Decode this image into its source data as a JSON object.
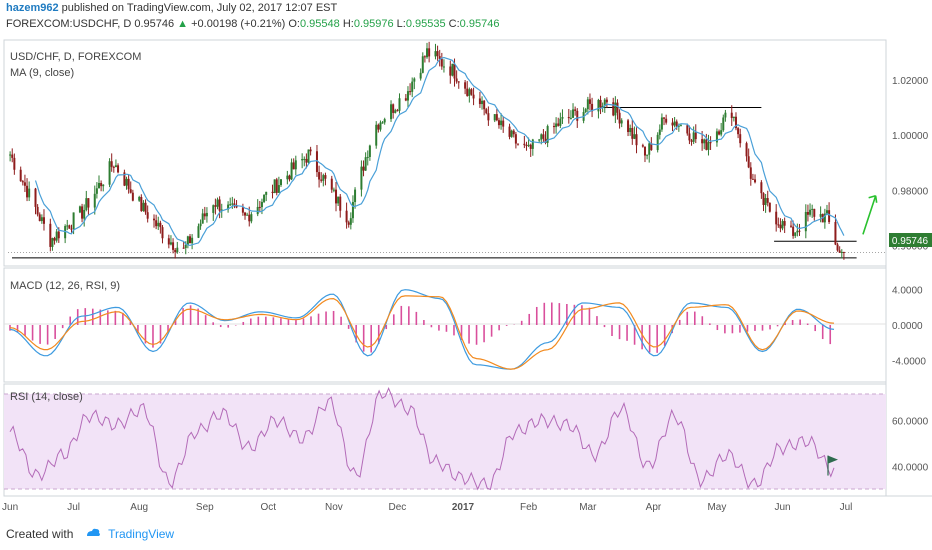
{
  "header": {
    "author": "hazem962",
    "published_text": "published on TradingView.com, July 02, 2017 12:07 EST",
    "symbol": "FOREXCOM:USDCHF, D",
    "price": "0.95746",
    "arrow": "▲",
    "change": "+0.00198 (+0.21%)",
    "o_label": "O:",
    "o_value": "0.95548",
    "h_label": "H:",
    "h_value": "0.95976",
    "l_label": "L:",
    "l_value": "0.95535",
    "c_label": "C:",
    "c_value": "0.95746"
  },
  "main_pane": {
    "title": "USD/CHF, D, FOREXCOM",
    "ma_label": "MA (9, close)",
    "price_badge": "0.95746"
  },
  "macd_pane": {
    "title": "MACD (12, 26, RSI, 9)"
  },
  "rsi_pane": {
    "title": "RSI (14, close)"
  },
  "footer": {
    "created_with": "Created with",
    "brand": "TradingView"
  },
  "colors": {
    "up_candle": "#2e7d32",
    "down_candle": "#8e1c1c",
    "ma": "#4aa0d8",
    "macd": "#3e9be0",
    "signal": "#f28a1f",
    "hist": "#d94f9c",
    "rsi_line": "#b36bb8",
    "rsi_band": "#f2e3f7",
    "arrow": "#29c12e"
  },
  "chart_data": [
    {
      "type": "candlestick",
      "title": "USD/CHF, D, FOREXCOM",
      "x_tick_labels": [
        "Jun",
        "Jul",
        "Aug",
        "Sep",
        "Oct",
        "Nov",
        "Dec",
        "2017",
        "Feb",
        "Mar",
        "Apr",
        "May",
        "Jun",
        "Jul"
      ],
      "y_tick_labels": [
        "1.02000",
        "1.00000",
        "0.98000",
        "0.96000"
      ],
      "ylim": [
        0.954,
        1.033
      ],
      "close_path": [
        [
          "2016-06-01",
          0.993
        ],
        [
          "2016-06-20",
          0.962
        ],
        [
          "2016-07-05",
          0.972
        ],
        [
          "2016-07-20",
          0.99
        ],
        [
          "2016-08-01",
          0.975
        ],
        [
          "2016-08-15",
          0.962
        ],
        [
          "2016-08-22",
          0.958
        ],
        [
          "2016-09-05",
          0.976
        ],
        [
          "2016-09-20",
          0.97
        ],
        [
          "2016-10-05",
          0.982
        ],
        [
          "2016-10-20",
          0.993
        ],
        [
          "2016-11-01",
          0.978
        ],
        [
          "2016-11-08",
          0.97
        ],
        [
          "2016-11-20",
          1.003
        ],
        [
          "2016-12-05",
          1.015
        ],
        [
          "2016-12-15",
          1.03
        ],
        [
          "2016-12-28",
          1.023
        ],
        [
          "2017-01-10",
          1.01
        ],
        [
          "2017-01-25",
          0.998
        ],
        [
          "2017-02-01",
          0.994
        ],
        [
          "2017-02-15",
          1.004
        ],
        [
          "2017-03-01",
          1.01
        ],
        [
          "2017-03-10",
          1.013
        ],
        [
          "2017-03-20",
          1.003
        ],
        [
          "2017-03-28",
          0.992
        ],
        [
          "2017-04-07",
          1.007
        ],
        [
          "2017-04-15",
          1.003
        ],
        [
          "2017-04-25",
          0.996
        ],
        [
          "2017-05-08",
          1.009
        ],
        [
          "2017-05-20",
          0.978
        ],
        [
          "2017-06-05",
          0.964
        ],
        [
          "2017-06-15",
          0.972
        ],
        [
          "2017-06-22",
          0.97
        ],
        [
          "2017-06-28",
          0.957
        ],
        [
          "2017-06-30",
          0.95746
        ]
      ],
      "ma_period": 9,
      "annotations": {
        "resistance_level": 1.01,
        "support_level": 0.9615,
        "long_term_support": 0.9555,
        "projection_arrow": "up"
      }
    },
    {
      "type": "line",
      "title": "MACD (12, 26, RSI, 9)",
      "y_tick_labels": [
        "4.0000",
        "0.0000",
        "-4.0000"
      ],
      "ylim": [
        -6,
        6
      ],
      "series": [
        {
          "values": [
            -0.5,
            -3.5,
            1.0,
            2.0,
            -3.0,
            2.5,
            0.5,
            1.5,
            0.8,
            3.5,
            -3.5,
            4.0,
            3.0,
            -4.5,
            -5.0,
            -2.0,
            2.5,
            2.0,
            -3.5,
            2.5,
            2.0,
            -3.0,
            1.8,
            -0.5
          ]
        },
        {
          "values": [
            -0.3,
            -2.8,
            0.4,
            1.5,
            -2.2,
            1.8,
            0.6,
            1.2,
            0.6,
            3.0,
            -2.5,
            3.3,
            3.2,
            -3.8,
            -5.0,
            -2.8,
            1.8,
            2.5,
            -2.5,
            2.0,
            2.3,
            -2.8,
            1.6,
            0.2
          ]
        }
      ]
    },
    {
      "type": "line",
      "title": "RSI (14, close)",
      "y_tick_labels": [
        "60.0000",
        "40.0000"
      ],
      "ylim": [
        28,
        74
      ],
      "series": [
        {
          "values": [
            55,
            36,
            45,
            62,
            58,
            65,
            33,
            55,
            63,
            48,
            60,
            52,
            68,
            36,
            72,
            65,
            42,
            35,
            32,
            55,
            60,
            58,
            45,
            65,
            40,
            62,
            34,
            45,
            32,
            48,
            51,
            38
          ]
        }
      ]
    }
  ]
}
